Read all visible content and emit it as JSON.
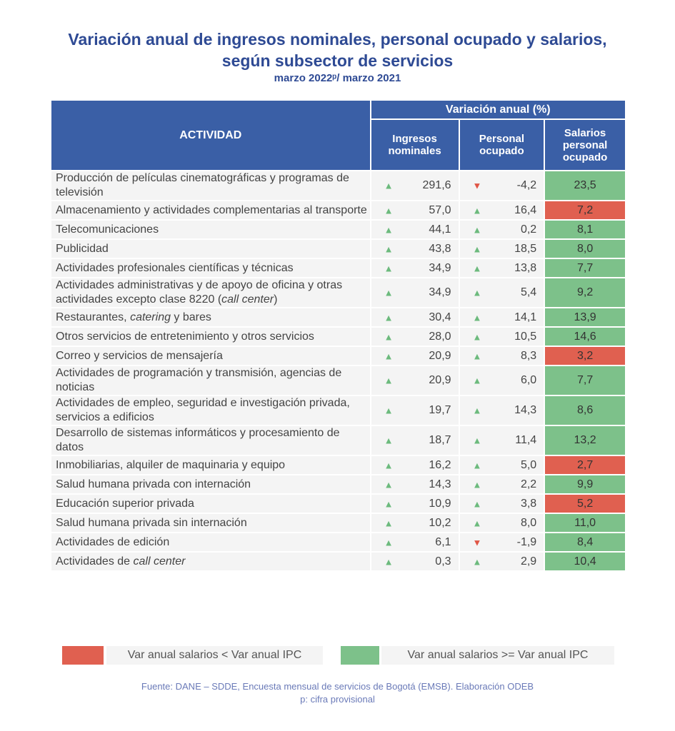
{
  "title": {
    "line1": "Variación anual de ingresos nominales, personal ocupado y salarios,",
    "line2": "según subsector de servicios",
    "subtitle": "marzo 2022ᵖ/ marzo 2021"
  },
  "colors": {
    "header": "#3a5fa6",
    "above": "#7dc18a",
    "below": "#e06050",
    "up": "#6cba7d",
    "down": "#e05545"
  },
  "chart_data": {
    "type": "table",
    "title": "Variación anual de ingresos nominales, personal ocupado y salarios, según subsector de servicios",
    "header": {
      "activity": "ACTIVIDAD",
      "group": "Variación anual (%)",
      "col1": "Ingresos nominales",
      "col2": "Personal ocupado",
      "col3": "Salarios personal ocupado"
    },
    "rows": [
      {
        "parts": [
          {
            "t": "Producción de películas cinematográficas y programas de televisión"
          }
        ],
        "ing": "291,6",
        "ing_dir": "up",
        "per": "-4,2",
        "per_dir": "down",
        "sal": "23,5",
        "sal_flag": "above"
      },
      {
        "parts": [
          {
            "t": "Almacenamiento y actividades complementarias al transporte"
          }
        ],
        "ing": "57,0",
        "ing_dir": "up",
        "per": "16,4",
        "per_dir": "up",
        "sal": "7,2",
        "sal_flag": "below"
      },
      {
        "parts": [
          {
            "t": "Telecomunicaciones"
          }
        ],
        "ing": "44,1",
        "ing_dir": "up",
        "per": "0,2",
        "per_dir": "up",
        "sal": "8,1",
        "sal_flag": "above"
      },
      {
        "parts": [
          {
            "t": "Publicidad"
          }
        ],
        "ing": "43,8",
        "ing_dir": "up",
        "per": "18,5",
        "per_dir": "up",
        "sal": "8,0",
        "sal_flag": "above"
      },
      {
        "parts": [
          {
            "t": "Actividades profesionales científicas y técnicas"
          }
        ],
        "ing": "34,9",
        "ing_dir": "up",
        "per": "13,8",
        "per_dir": "up",
        "sal": "7,7",
        "sal_flag": "above"
      },
      {
        "parts": [
          {
            "t": "Actividades administrativas y de apoyo de oficina y otras actividades excepto clase 8220 ("
          },
          {
            "t": "call center",
            "i": true
          },
          {
            "t": ")"
          }
        ],
        "ing": "34,9",
        "ing_dir": "up",
        "per": "5,4",
        "per_dir": "up",
        "sal": "9,2",
        "sal_flag": "above"
      },
      {
        "parts": [
          {
            "t": "Restaurantes, "
          },
          {
            "t": "catering",
            "i": true
          },
          {
            "t": " y bares"
          }
        ],
        "ing": "30,4",
        "ing_dir": "up",
        "per": "14,1",
        "per_dir": "up",
        "sal": "13,9",
        "sal_flag": "above"
      },
      {
        "parts": [
          {
            "t": "Otros servicios de entretenimiento y otros servicios"
          }
        ],
        "ing": "28,0",
        "ing_dir": "up",
        "per": "10,5",
        "per_dir": "up",
        "sal": "14,6",
        "sal_flag": "above"
      },
      {
        "parts": [
          {
            "t": "Correo y servicios de mensajería"
          }
        ],
        "ing": "20,9",
        "ing_dir": "up",
        "per": "8,3",
        "per_dir": "up",
        "sal": "3,2",
        "sal_flag": "below"
      },
      {
        "parts": [
          {
            "t": "Actividades de programación y transmisión,  agencias de noticias"
          }
        ],
        "ing": "20,9",
        "ing_dir": "up",
        "per": "6,0",
        "per_dir": "up",
        "sal": "7,7",
        "sal_flag": "above"
      },
      {
        "parts": [
          {
            "t": "Actividades de empleo, seguridad e investigación privada, servicios a edificios"
          }
        ],
        "ing": "19,7",
        "ing_dir": "up",
        "per": "14,3",
        "per_dir": "up",
        "sal": "8,6",
        "sal_flag": "above"
      },
      {
        "parts": [
          {
            "t": "Desarrollo de sistemas informáticos y procesamiento de datos"
          }
        ],
        "ing": "18,7",
        "ing_dir": "up",
        "per": "11,4",
        "per_dir": "up",
        "sal": "13,2",
        "sal_flag": "above"
      },
      {
        "parts": [
          {
            "t": "Inmobiliarias, alquiler de maquinaria y equipo"
          }
        ],
        "ing": "16,2",
        "ing_dir": "up",
        "per": "5,0",
        "per_dir": "up",
        "sal": "2,7",
        "sal_flag": "below"
      },
      {
        "parts": [
          {
            "t": "Salud humana privada con internación"
          }
        ],
        "ing": "14,3",
        "ing_dir": "up",
        "per": "2,2",
        "per_dir": "up",
        "sal": "9,9",
        "sal_flag": "above"
      },
      {
        "parts": [
          {
            "t": "Educación superior privada"
          }
        ],
        "ing": "10,9",
        "ing_dir": "up",
        "per": "3,8",
        "per_dir": "up",
        "sal": "5,2",
        "sal_flag": "below"
      },
      {
        "parts": [
          {
            "t": "Salud humana privada sin internación"
          }
        ],
        "ing": "10,2",
        "ing_dir": "up",
        "per": "8,0",
        "per_dir": "up",
        "sal": "11,0",
        "sal_flag": "above"
      },
      {
        "parts": [
          {
            "t": "Actividades de edición"
          }
        ],
        "ing": "6,1",
        "ing_dir": "up",
        "per": "-1,9",
        "per_dir": "down",
        "sal": "8,4",
        "sal_flag": "above"
      },
      {
        "parts": [
          {
            "t": "Actividades de "
          },
          {
            "t": "call center",
            "i": true
          }
        ],
        "ing": "0,3",
        "ing_dir": "up",
        "per": "2,9",
        "per_dir": "up",
        "sal": "10,4",
        "sal_flag": "above"
      }
    ]
  },
  "legend": {
    "below": "Var anual salarios < Var anual IPC",
    "above": "Var anual salarios >= Var anual IPC"
  },
  "footer": {
    "source": "Fuente: DANE – SDDE, Encuesta mensual de servicios de Bogotá (EMSB). Elaboración ODEB",
    "note": "p: cifra provisional"
  }
}
